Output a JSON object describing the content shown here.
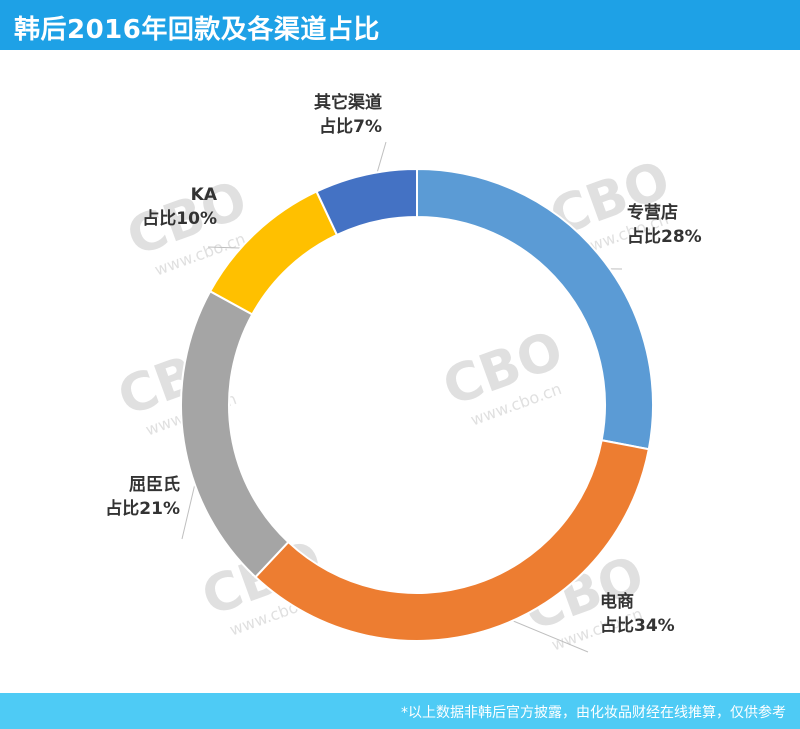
{
  "header": {
    "title": "韩后2016年回款及各渠道占比"
  },
  "footer": {
    "note": "*以上数据非韩后官方披露，由化妆品财经在线推算，仅供参考"
  },
  "watermark": {
    "logo": "CBO",
    "url": "www.cbo.cn"
  },
  "chart_data": {
    "type": "pie",
    "title": "韩后2016年回款及各渠道占比",
    "categories": [
      "专营店",
      "电商",
      "屈臣氏",
      "KA",
      "其它渠道"
    ],
    "values": [
      28,
      34,
      21,
      10,
      7
    ],
    "unit": "%",
    "labels": [
      {
        "name": "专营店",
        "text": "占比28%"
      },
      {
        "name": "电商",
        "text": "占比34%"
      },
      {
        "name": "屈臣氏",
        "text": "占比21%"
      },
      {
        "name": "KA",
        "text": "占比10%"
      },
      {
        "name": "其它渠道",
        "text": "占比7%"
      }
    ],
    "colors": [
      "#5b9bd5",
      "#ed7d31",
      "#a5a5a5",
      "#ffc000",
      "#4472c4"
    ],
    "legend": "none"
  }
}
